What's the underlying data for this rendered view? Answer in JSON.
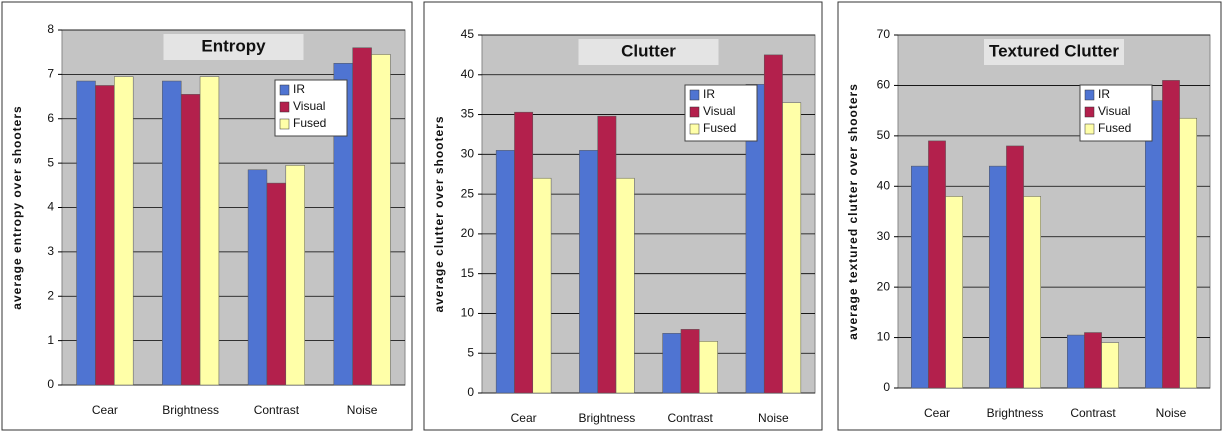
{
  "chart_data": [
    {
      "type": "bar",
      "title": "Entropy",
      "y_label": "average entropy over shooters",
      "categories": [
        "Cear",
        "Brightness",
        "Contrast",
        "Noise"
      ],
      "series": [
        {
          "name": "IR",
          "color": "#4f74d2",
          "values": [
            6.85,
            6.85,
            4.85,
            7.25
          ]
        },
        {
          "name": "Visual",
          "color": "#b3204c",
          "values": [
            6.75,
            6.55,
            4.55,
            7.6
          ]
        },
        {
          "name": "Fused",
          "color": "#ffffa8",
          "values": [
            6.95,
            6.95,
            4.95,
            7.45
          ]
        }
      ],
      "ylim": [
        0,
        8
      ],
      "yticks": [
        0,
        1,
        2,
        3,
        4,
        5,
        6,
        7,
        8
      ],
      "grid": true,
      "legend": "top-right"
    },
    {
      "type": "bar",
      "title": "Clutter",
      "y_label": "average clutter over shooters",
      "categories": [
        "Cear",
        "Brightness",
        "Contrast",
        "Noise"
      ],
      "series": [
        {
          "name": "IR",
          "color": "#4f74d2",
          "values": [
            30.5,
            30.5,
            7.5,
            38.8
          ]
        },
        {
          "name": "Visual",
          "color": "#b3204c",
          "values": [
            35.3,
            34.8,
            8,
            42.5
          ]
        },
        {
          "name": "Fused",
          "color": "#ffffa8",
          "values": [
            27,
            27,
            6.5,
            36.5
          ]
        }
      ],
      "ylim": [
        0,
        45
      ],
      "yticks": [
        0,
        5,
        10,
        15,
        20,
        25,
        30,
        35,
        40,
        45
      ],
      "grid": true,
      "legend": "top-right"
    },
    {
      "type": "bar",
      "title": "Textured Clutter",
      "y_label": "average textured clutter over shooters",
      "categories": [
        "Cear",
        "Brightness",
        "Contrast",
        "Noise"
      ],
      "series": [
        {
          "name": "IR",
          "color": "#4f74d2",
          "values": [
            44,
            44,
            10.5,
            57
          ]
        },
        {
          "name": "Visual",
          "color": "#b3204c",
          "values": [
            49,
            48,
            11,
            61
          ]
        },
        {
          "name": "Fused",
          "color": "#ffffa8",
          "values": [
            38,
            38,
            9,
            53.5
          ]
        }
      ],
      "ylim": [
        0,
        70
      ],
      "yticks": [
        0,
        10,
        20,
        30,
        40,
        50,
        60,
        70
      ],
      "grid": true,
      "legend": "top-right"
    }
  ]
}
